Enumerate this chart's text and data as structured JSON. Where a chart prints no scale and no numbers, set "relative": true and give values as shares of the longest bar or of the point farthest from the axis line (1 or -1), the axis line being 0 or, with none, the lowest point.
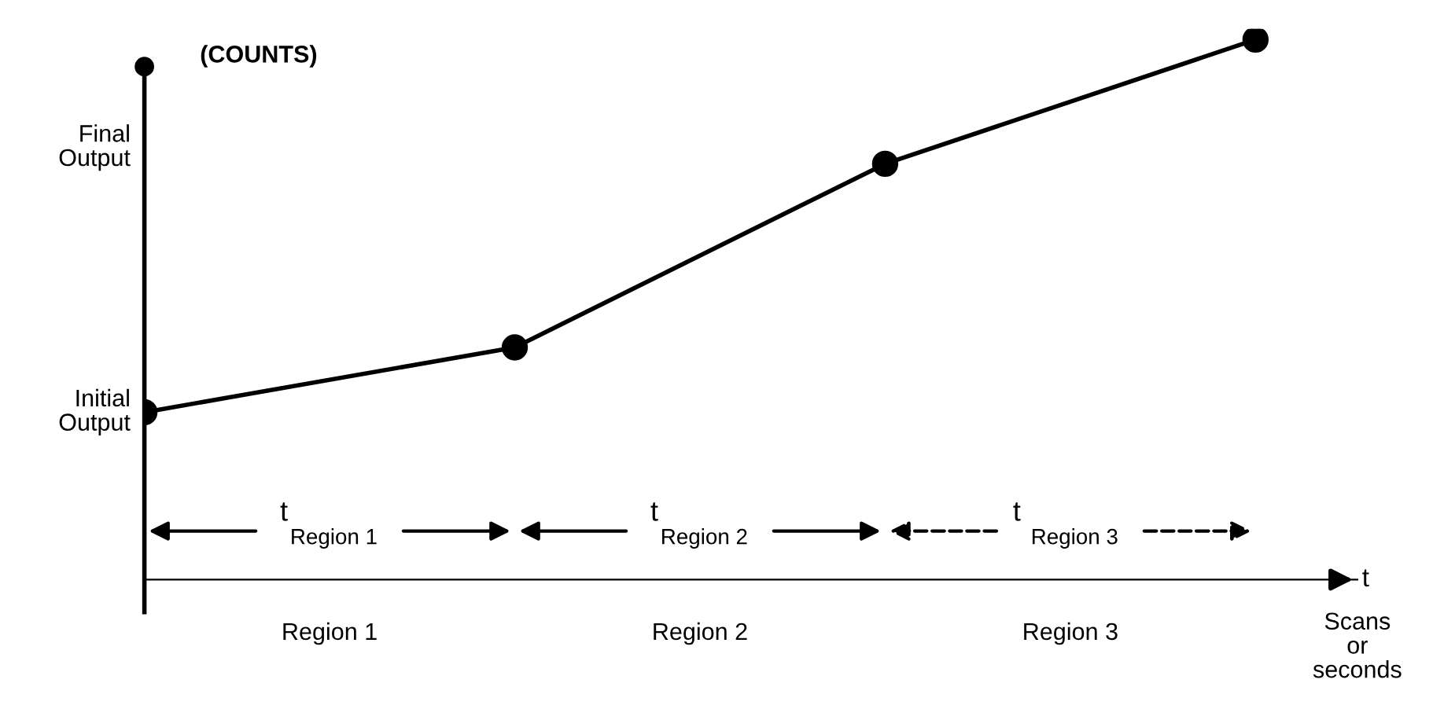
{
  "chart_data": {
    "type": "line",
    "relative": true,
    "categories": [
      null,
      null,
      null,
      null
    ],
    "series": [
      {
        "color": "#000000",
        "values": [
          0.31,
          0.43,
          0.77,
          1.0
        ]
      }
    ],
    "marker": "circle",
    "line_style": "solid",
    "ylabel": "(COUNTS)",
    "xlabel": "t",
    "annotations": [
      "Initial\nOutput",
      "Final\nOutput",
      "Scans\nor\nseconds",
      "Region 1",
      "Region 2",
      "Region 3",
      "t$_{Region 1}$",
      "t$_{Region 2}$",
      "t $_{Region 3}$"
    ]
  }
}
